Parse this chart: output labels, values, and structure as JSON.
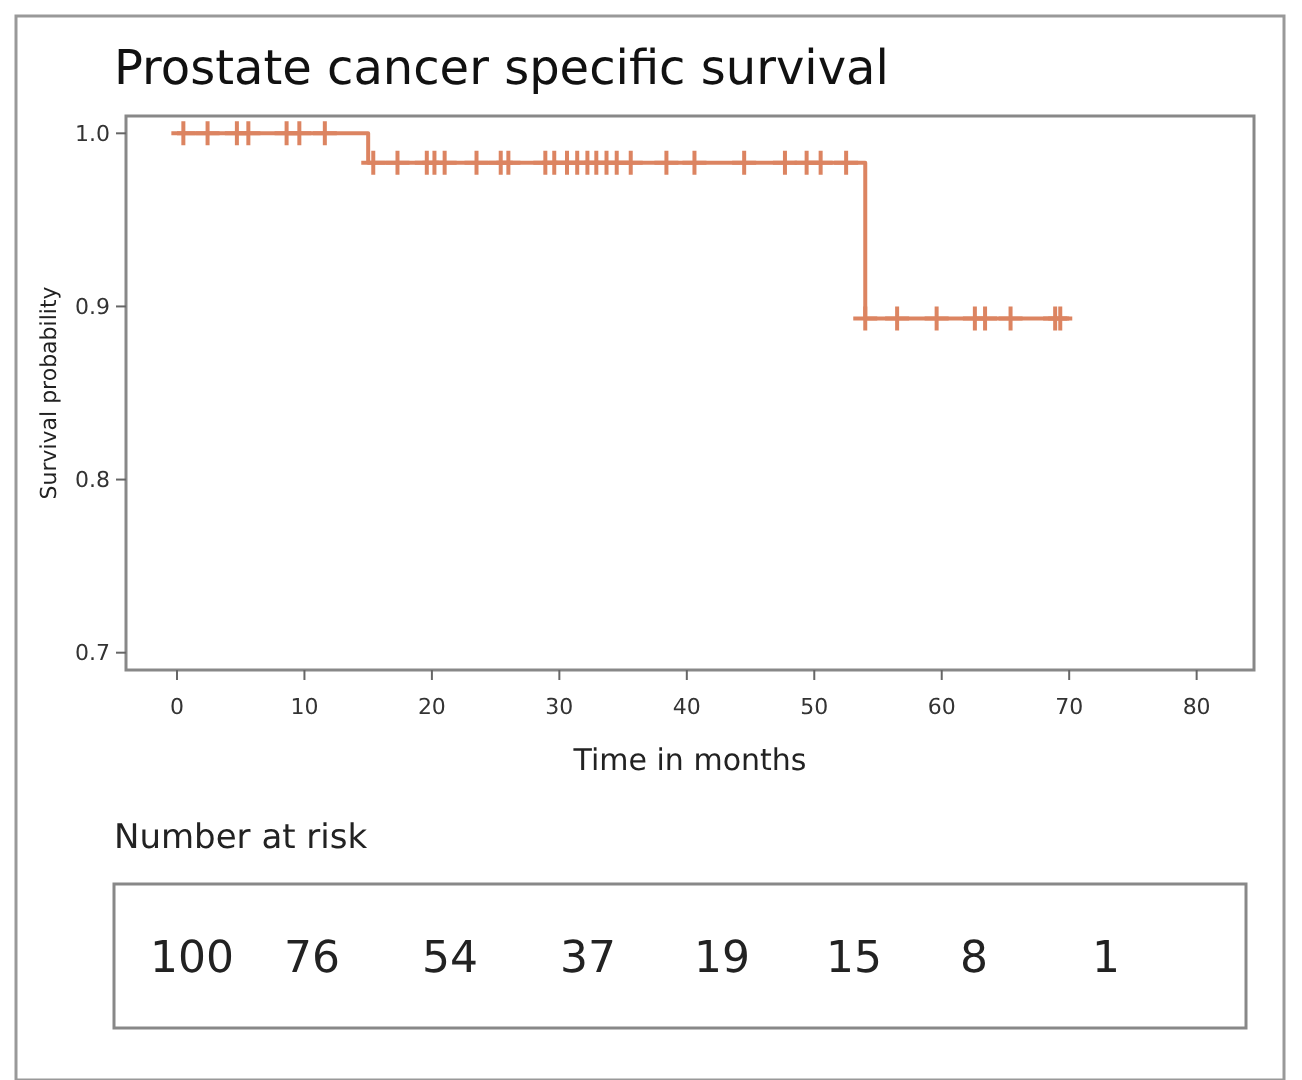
{
  "chart_data": {
    "type": "step",
    "title": "Prostate cancer specific survival",
    "xlabel": "Time in months",
    "ylabel": "Survival probability",
    "xlim": [
      -4,
      84.5
    ],
    "ylim": [
      0.69,
      1.01
    ],
    "xticks": [
      0,
      10,
      20,
      30,
      40,
      50,
      60,
      70,
      80
    ],
    "yticks": [
      {
        "value": 0.7,
        "label": "0.7"
      },
      {
        "value": 0.8,
        "label": "0.8"
      },
      {
        "value": 0.9,
        "label": "0.9"
      },
      {
        "value": 1.0,
        "label": "1.0"
      }
    ],
    "grid": false,
    "series": [
      {
        "color": "#dc8461",
        "x": [
          0,
          15,
          54,
          70
        ],
        "values": [
          1.0,
          0.983,
          0.893,
          0.893
        ]
      },
      {
        "type": "scatter",
        "marker": "cross",
        "color": "#dc8461",
        "x": [
          0.5,
          2.4,
          4.7,
          5.6,
          8.6,
          9.6,
          11.6,
          15.4,
          17.3,
          19.6,
          20.2,
          21.0,
          23.5,
          25.4,
          26.0,
          28.9,
          29.6,
          30.6,
          31.4,
          32.2,
          32.9,
          33.7,
          34.5,
          35.6,
          38.4,
          40.6,
          44.5,
          47.7,
          49.4,
          50.5,
          52.5,
          54.0,
          56.5,
          59.6,
          62.6,
          63.4,
          65.4,
          68.9,
          69.3
        ],
        "values": [
          1.0,
          1.0,
          1.0,
          1.0,
          1.0,
          1.0,
          1.0,
          0.983,
          0.983,
          0.983,
          0.983,
          0.983,
          0.983,
          0.983,
          0.983,
          0.983,
          0.983,
          0.983,
          0.983,
          0.983,
          0.983,
          0.983,
          0.983,
          0.983,
          0.983,
          0.983,
          0.983,
          0.983,
          0.983,
          0.983,
          0.983,
          0.893,
          0.893,
          0.893,
          0.893,
          0.893,
          0.893,
          0.893,
          0.893
        ]
      }
    ],
    "annotations": [
      "Number at risk",
      "100",
      "76",
      "54",
      "37",
      "19",
      "15",
      "8",
      "1"
    ]
  }
}
